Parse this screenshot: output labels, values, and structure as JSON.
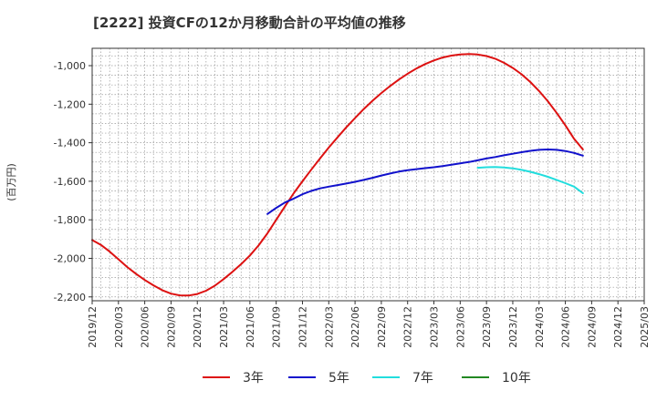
{
  "chart_data": {
    "type": "line",
    "title": "[2222]  投資CFの12か月移動合計の平均値の推移",
    "ylabel": "(百万円)",
    "xlabel": "",
    "ylim": [
      -2220,
      -910
    ],
    "yticks": [
      -1000,
      -1200,
      -1400,
      -1600,
      -1800,
      -2000,
      -2200
    ],
    "ytick_labels": [
      "-1,000",
      "-1,200",
      "-1,400",
      "-1,600",
      "-1,800",
      "-2,000",
      "-2,200"
    ],
    "xticks": [
      "2019/12",
      "2020/03",
      "2020/06",
      "2020/09",
      "2020/12",
      "2021/03",
      "2021/06",
      "2021/09",
      "2021/12",
      "2022/03",
      "2022/06",
      "2022/09",
      "2022/12",
      "2023/03",
      "2023/06",
      "2023/09",
      "2023/12",
      "2024/03",
      "2024/06",
      "2024/09",
      "2024/12",
      "2025/03"
    ],
    "grid": true,
    "legend_position": "bottom",
    "series": [
      {
        "name": "3年",
        "color": "#dd1111",
        "points": [
          [
            "2019/12",
            -1905
          ],
          [
            "2020/01",
            -1930
          ],
          [
            "2020/02",
            -1965
          ],
          [
            "2020/03",
            -2005
          ],
          [
            "2020/04",
            -2045
          ],
          [
            "2020/05",
            -2080
          ],
          [
            "2020/06",
            -2112
          ],
          [
            "2020/07",
            -2140
          ],
          [
            "2020/08",
            -2165
          ],
          [
            "2020/09",
            -2183
          ],
          [
            "2020/10",
            -2192
          ],
          [
            "2020/11",
            -2193
          ],
          [
            "2020/12",
            -2185
          ],
          [
            "2021/01",
            -2168
          ],
          [
            "2021/02",
            -2142
          ],
          [
            "2021/03",
            -2108
          ],
          [
            "2021/04",
            -2070
          ],
          [
            "2021/05",
            -2030
          ],
          [
            "2021/06",
            -1985
          ],
          [
            "2021/07",
            -1932
          ],
          [
            "2021/08",
            -1870
          ],
          [
            "2021/09",
            -1800
          ],
          [
            "2021/10",
            -1730
          ],
          [
            "2021/11",
            -1662
          ],
          [
            "2021/12",
            -1600
          ],
          [
            "2022/01",
            -1540
          ],
          [
            "2022/02",
            -1482
          ],
          [
            "2022/03",
            -1425
          ],
          [
            "2022/04",
            -1372
          ],
          [
            "2022/05",
            -1320
          ],
          [
            "2022/06",
            -1272
          ],
          [
            "2022/07",
            -1225
          ],
          [
            "2022/08",
            -1182
          ],
          [
            "2022/09",
            -1142
          ],
          [
            "2022/10",
            -1106
          ],
          [
            "2022/11",
            -1072
          ],
          [
            "2022/12",
            -1042
          ],
          [
            "2023/01",
            -1015
          ],
          [
            "2023/02",
            -992
          ],
          [
            "2023/03",
            -973
          ],
          [
            "2023/04",
            -958
          ],
          [
            "2023/05",
            -948
          ],
          [
            "2023/06",
            -942
          ],
          [
            "2023/07",
            -940
          ],
          [
            "2023/08",
            -942
          ],
          [
            "2023/09",
            -950
          ],
          [
            "2023/10",
            -964
          ],
          [
            "2023/11",
            -985
          ],
          [
            "2023/12",
            -1012
          ],
          [
            "2024/01",
            -1045
          ],
          [
            "2024/02",
            -1085
          ],
          [
            "2024/03",
            -1132
          ],
          [
            "2024/04",
            -1185
          ],
          [
            "2024/05",
            -1245
          ],
          [
            "2024/06",
            -1310
          ],
          [
            "2024/07",
            -1380
          ],
          [
            "2024/08",
            -1435
          ]
        ]
      },
      {
        "name": "5年",
        "color": "#1111cc",
        "points": [
          [
            "2021/08",
            -1770
          ],
          [
            "2021/09",
            -1738
          ],
          [
            "2021/10",
            -1710
          ],
          [
            "2021/11",
            -1690
          ],
          [
            "2021/12",
            -1667
          ],
          [
            "2022/01",
            -1650
          ],
          [
            "2022/02",
            -1637
          ],
          [
            "2022/03",
            -1628
          ],
          [
            "2022/04",
            -1620
          ],
          [
            "2022/05",
            -1612
          ],
          [
            "2022/06",
            -1603
          ],
          [
            "2022/07",
            -1593
          ],
          [
            "2022/08",
            -1582
          ],
          [
            "2022/09",
            -1570
          ],
          [
            "2022/10",
            -1560
          ],
          [
            "2022/11",
            -1550
          ],
          [
            "2022/12",
            -1543
          ],
          [
            "2023/01",
            -1537
          ],
          [
            "2023/02",
            -1532
          ],
          [
            "2023/03",
            -1527
          ],
          [
            "2023/04",
            -1521
          ],
          [
            "2023/05",
            -1514
          ],
          [
            "2023/06",
            -1507
          ],
          [
            "2023/07",
            -1500
          ],
          [
            "2023/08",
            -1491
          ],
          [
            "2023/09",
            -1482
          ],
          [
            "2023/10",
            -1474
          ],
          [
            "2023/11",
            -1465
          ],
          [
            "2023/12",
            -1457
          ],
          [
            "2024/01",
            -1449
          ],
          [
            "2024/02",
            -1442
          ],
          [
            "2024/03",
            -1437
          ],
          [
            "2024/04",
            -1435
          ],
          [
            "2024/05",
            -1437
          ],
          [
            "2024/06",
            -1443
          ],
          [
            "2024/07",
            -1453
          ],
          [
            "2024/08",
            -1467
          ]
        ]
      },
      {
        "name": "7年",
        "color": "#22dddd",
        "points": [
          [
            "2023/08",
            -1530
          ],
          [
            "2023/09",
            -1527
          ],
          [
            "2023/10",
            -1526
          ],
          [
            "2023/11",
            -1528
          ],
          [
            "2023/12",
            -1533
          ],
          [
            "2024/01",
            -1541
          ],
          [
            "2024/02",
            -1551
          ],
          [
            "2024/03",
            -1563
          ],
          [
            "2024/04",
            -1577
          ],
          [
            "2024/05",
            -1593
          ],
          [
            "2024/06",
            -1610
          ],
          [
            "2024/07",
            -1628
          ],
          [
            "2024/08",
            -1662
          ]
        ]
      },
      {
        "name": "10年",
        "color": "#228822",
        "points": []
      }
    ]
  }
}
